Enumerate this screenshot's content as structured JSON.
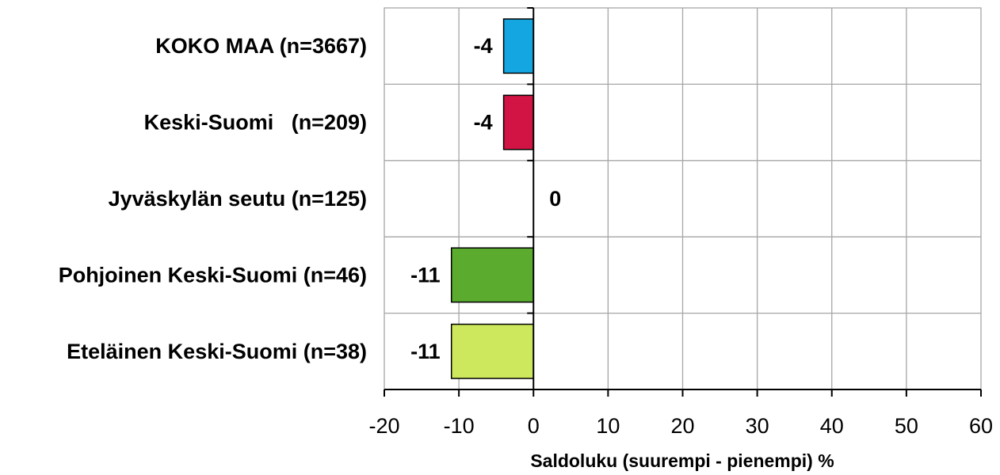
{
  "chart_data": {
    "type": "bar",
    "orientation": "horizontal",
    "categories": [
      "KOKO MAA (n=3667)",
      "Keski-Suomi   (n=209)",
      "Jyväskylän seutu (n=125)",
      "Pohjoinen Keski-Suomi (n=46)",
      "Eteläinen Keski-Suomi (n=38)"
    ],
    "values": [
      -4,
      -4,
      0,
      -11,
      -11
    ],
    "value_labels": [
      "-4",
      "-4",
      "0",
      "-11",
      "-11"
    ],
    "colors": [
      "#14a6e0",
      "#d21444",
      "#cccccc",
      "#5aab2e",
      "#cde85c"
    ],
    "xlabel": "Saldoluku (suurempi - pienempi) %",
    "ylabel": "",
    "xlim": [
      -20,
      60
    ],
    "xticks": [
      -20,
      -10,
      0,
      10,
      20,
      30,
      40,
      50,
      60
    ],
    "xtick_labels": [
      "-20",
      "-10",
      "0",
      "10",
      "20",
      "30",
      "40",
      "50",
      "60"
    ],
    "grid": true,
    "legend": "none"
  }
}
